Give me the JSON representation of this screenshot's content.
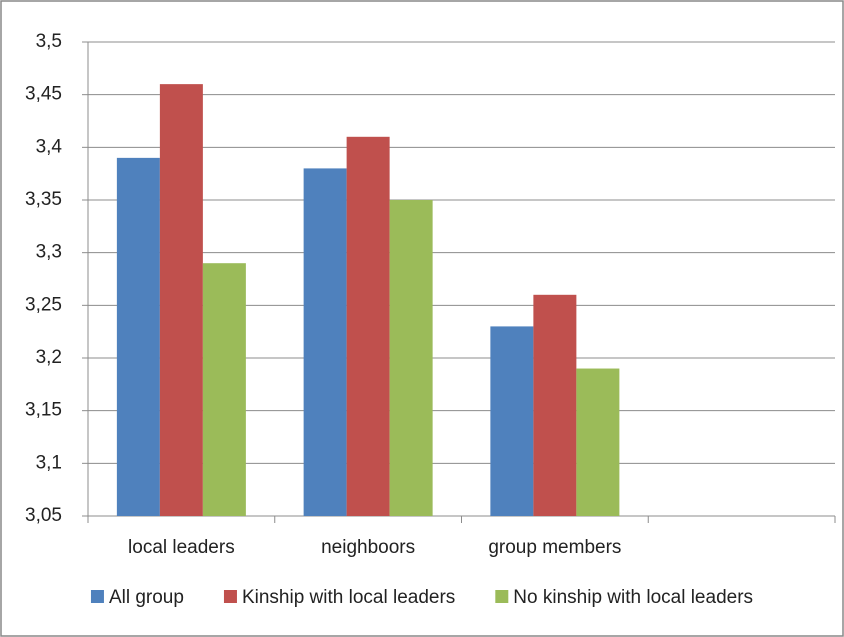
{
  "chart_data": {
    "type": "bar",
    "categories": [
      "local leaders",
      "neighboors",
      "group members",
      null
    ],
    "series": [
      {
        "name": "All group",
        "color": "#4f81bd",
        "values": [
          3.39,
          3.38,
          3.23,
          null
        ]
      },
      {
        "name": "Kinship with local leaders",
        "color": "#c0504d",
        "values": [
          3.46,
          3.41,
          3.26,
          null
        ]
      },
      {
        "name": "No kinship with local leaders",
        "color": "#9bbb59",
        "values": [
          3.29,
          3.35,
          3.19,
          null
        ]
      }
    ],
    "ylim": [
      3.05,
      3.5
    ],
    "yticks": [
      {
        "value": 3.05,
        "label": "3,05"
      },
      {
        "value": 3.1,
        "label": "3,1"
      },
      {
        "value": 3.15,
        "label": "3,15"
      },
      {
        "value": 3.2,
        "label": "3,2"
      },
      {
        "value": 3.25,
        "label": "3,25"
      },
      {
        "value": 3.3,
        "label": "3,3"
      },
      {
        "value": 3.35,
        "label": "3,35"
      },
      {
        "value": 3.4,
        "label": "3,4"
      },
      {
        "value": 3.45,
        "label": "3,45"
      },
      {
        "value": 3.5,
        "label": "3,5"
      }
    ],
    "grid": true,
    "legend": "bottom"
  }
}
